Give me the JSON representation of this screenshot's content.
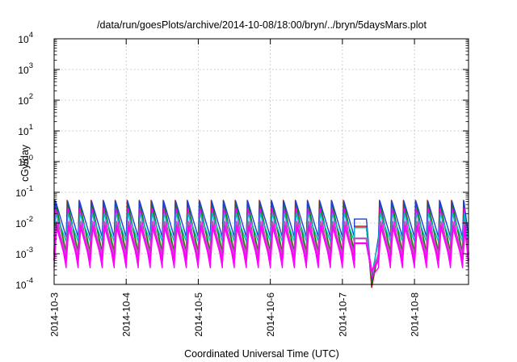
{
  "chart_data": {
    "type": "line",
    "title": "/data/run/goesPlots/archive/2014-10-08/18:00/bryn/../bryn/5daysMars.plot",
    "xlabel": "Coordinated Universal Time (UTC)",
    "ylabel": "cGy/day",
    "y_scale": "log",
    "ylim": [
      0.0001,
      10000
    ],
    "xlim": [
      "2014-10-03T00:00",
      "2014-10-08T18:00"
    ],
    "grid": true,
    "legend": "none",
    "x_tick_labels": [
      "2014-10-3",
      "2014-10-4",
      "2014-10-5",
      "2014-10-6",
      "2014-10-7",
      "2014-10-8"
    ],
    "y_tick_labels": [
      {
        "base": "10",
        "exp": "-4",
        "value": 0.0001
      },
      {
        "base": "10",
        "exp": "-3",
        "value": 0.001
      },
      {
        "base": "10",
        "exp": "-2",
        "value": 0.01
      },
      {
        "base": "10",
        "exp": "-1",
        "value": 0.1
      },
      {
        "base": "10",
        "exp": "0",
        "value": 1
      },
      {
        "base": "10",
        "exp": "1",
        "value": 10
      },
      {
        "base": "10",
        "exp": "2",
        "value": 100
      },
      {
        "base": "10",
        "exp": "3",
        "value": 1000
      },
      {
        "base": "10",
        "exp": "4",
        "value": 10000
      }
    ],
    "pattern": {
      "cycle_hours": 4,
      "cycle_start": "2014-10-03T00:00",
      "description_omitted": true
    },
    "gap": {
      "start": "2014-10-07T07:30",
      "end": "2014-10-07T12:00",
      "min_value": 8e-05
    },
    "series": [
      {
        "color": "#cc0000",
        "peak": 0.055,
        "trough": 0.0011
      },
      {
        "color": "#008800",
        "peak": 0.05,
        "trough": 0.001
      },
      {
        "color": "#1f3fd6",
        "peak": 0.052,
        "trough": 0.0035
      },
      {
        "color": "#ff00ff",
        "peak": 0.03,
        "trough": 0.00035
      },
      {
        "color": "#00bcbc",
        "peak": 0.02,
        "trough": 0.0025
      },
      {
        "color": "#b060b0",
        "peak": 0.011,
        "trough": 0.0009
      },
      {
        "color": "#ff00ff",
        "peak": 0.008,
        "trough": 0.0006
      }
    ]
  }
}
